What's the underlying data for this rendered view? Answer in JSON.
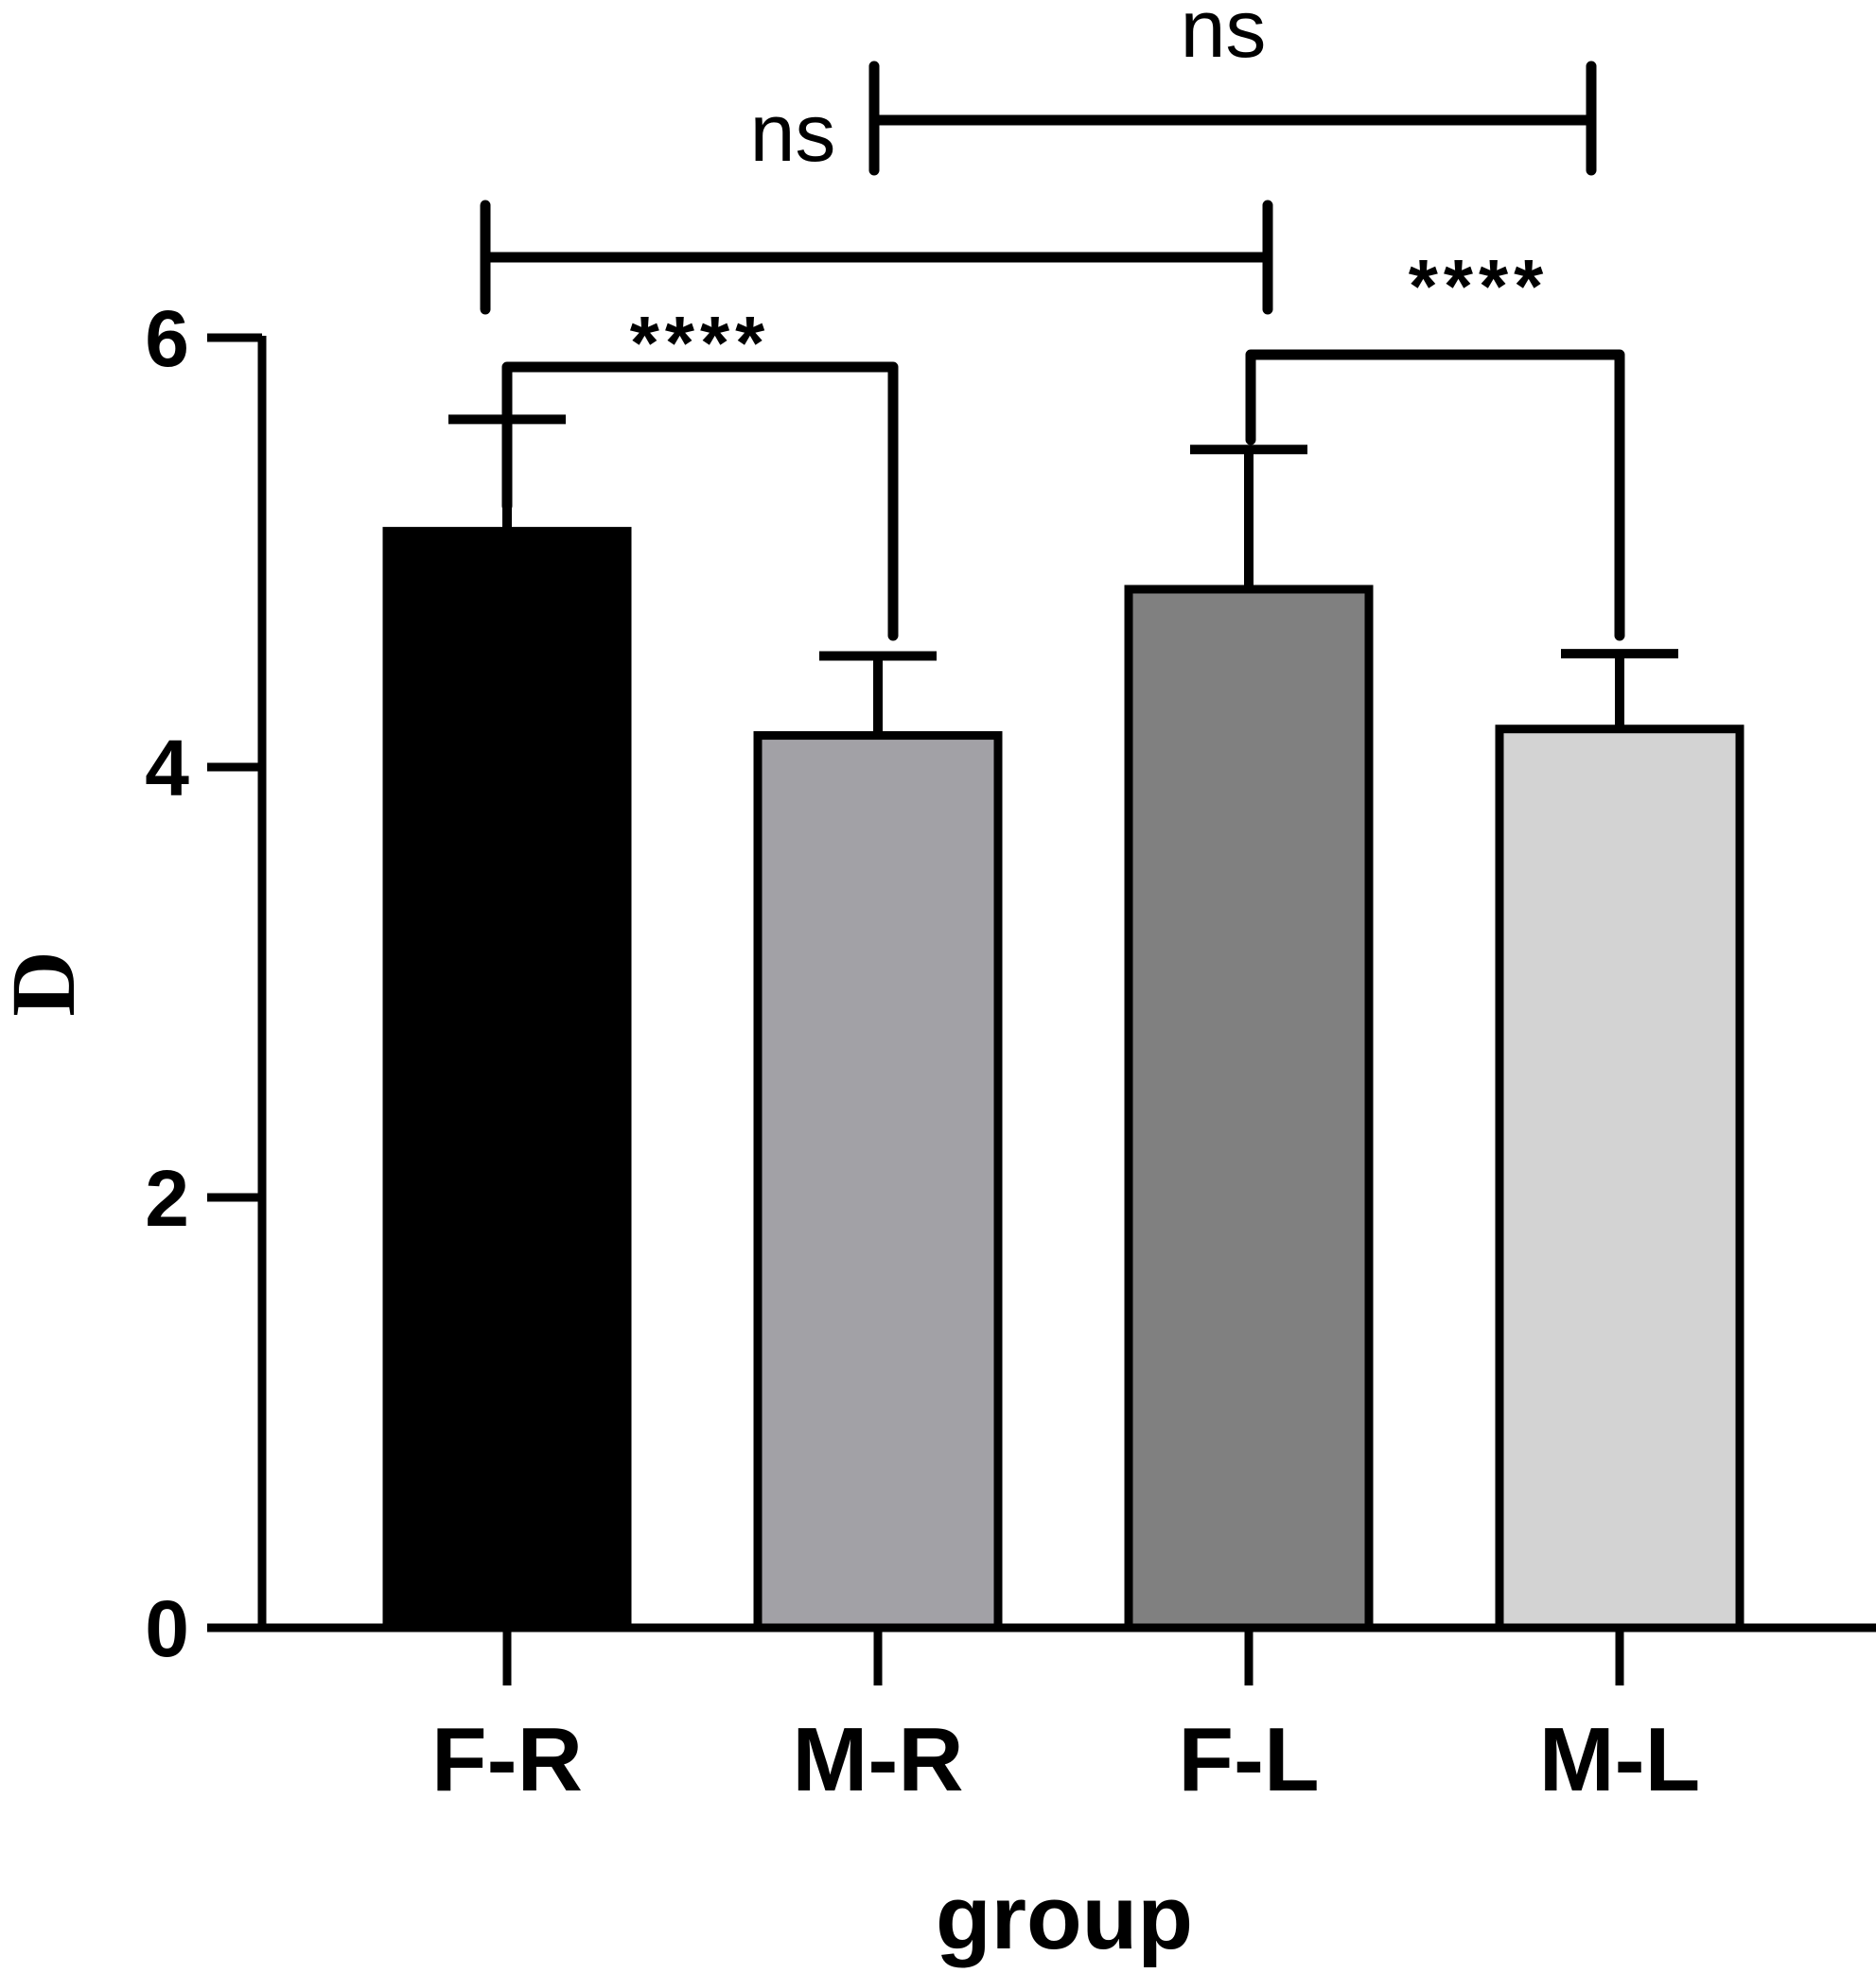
{
  "chart_data": {
    "type": "bar",
    "categories": [
      "F-R",
      "M-R",
      "F-L",
      "M-L"
    ],
    "values": [
      5.1,
      4.15,
      4.83,
      4.18
    ],
    "errors": [
      0.52,
      0.37,
      0.65,
      0.35
    ],
    "colors": [
      "#000000",
      "#a2a1a6",
      "#808080",
      "#d3d3d3"
    ],
    "xlabel": "group",
    "ylabel": "D",
    "ylim": [
      0,
      6
    ],
    "yticks": [
      "0",
      "2",
      "4",
      "6"
    ],
    "grid": false,
    "annotations": [
      {
        "from": "F-R",
        "to": "M-R",
        "label": "****"
      },
      {
        "from": "F-L",
        "to": "M-L",
        "label": "****"
      },
      {
        "from": "F-R",
        "to": "F-L",
        "label": "ns"
      },
      {
        "from": "M-R",
        "to": "M-L",
        "label": "ns"
      }
    ]
  }
}
